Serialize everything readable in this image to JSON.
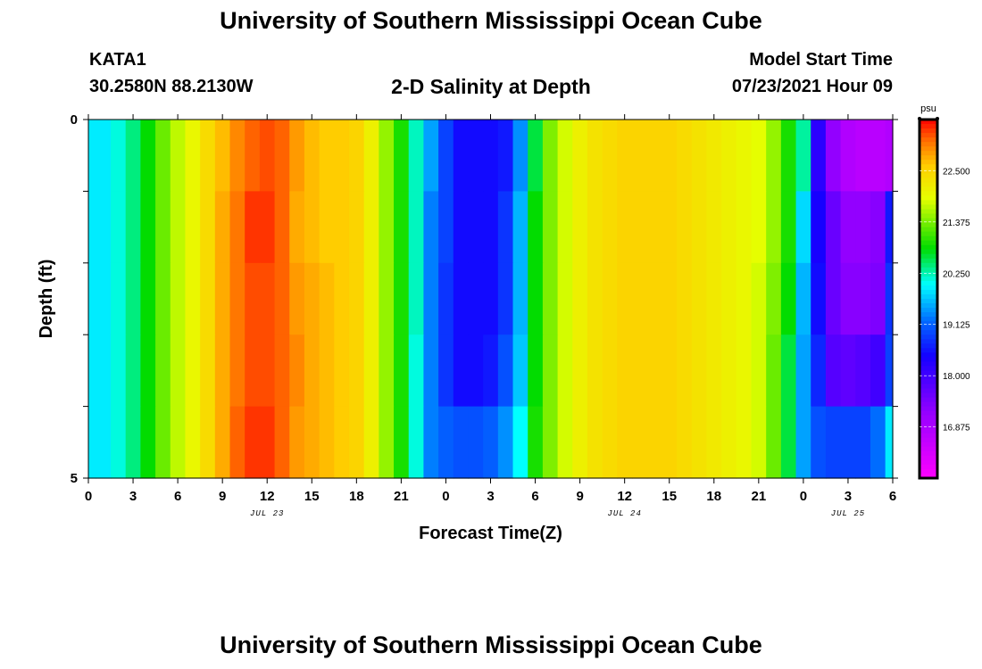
{
  "header": {
    "title": "University of Southern Mississippi Ocean Cube",
    "station": "KATA1",
    "coordinates": "30.2580N  88.2130W",
    "subtitle": "2-D Salinity at Depth",
    "model_start_label": "Model Start Time",
    "model_start_value": "07/23/2021 Hour 09"
  },
  "footer": {
    "title": "University of Southern Mississippi Ocean Cube"
  },
  "chart_data": {
    "type": "heatmap",
    "xlabel": "Forecast Time(Z)",
    "ylabel": "Depth (ft)",
    "x_tick_labels": [
      "0",
      "3",
      "6",
      "9",
      "12",
      "15",
      "18",
      "21",
      "0",
      "3",
      "6",
      "9",
      "12",
      "15",
      "18",
      "21",
      "0",
      "3",
      "6"
    ],
    "x_range_hours": [
      0,
      54
    ],
    "date_labels": [
      {
        "label": "JUL 23",
        "hour": 12
      },
      {
        "label": "JUL 24",
        "hour": 36
      },
      {
        "label": "JUL 25",
        "hour": 51
      }
    ],
    "y_tick_labels": [
      "0",
      "5"
    ],
    "ylim": [
      0,
      5
    ],
    "depth_levels_ft": [
      0.5,
      1.5,
      2.5,
      3.5,
      4.5
    ],
    "colorbar": {
      "unit": "psu",
      "tick_labels": [
        "22.500",
        "21.375",
        "20.250",
        "19.125",
        "18.000",
        "16.875"
      ],
      "vmin": 15.75,
      "vmax": 23.625
    },
    "hours": [
      0,
      1,
      2,
      3,
      4,
      5,
      6,
      7,
      8,
      9,
      10,
      11,
      12,
      13,
      14,
      15,
      16,
      17,
      18,
      19,
      20,
      21,
      22,
      23,
      24,
      25,
      26,
      27,
      28,
      29,
      30,
      31,
      32,
      33,
      34,
      35,
      36,
      37,
      38,
      39,
      40,
      41,
      42,
      43,
      44,
      45,
      46,
      47,
      48,
      49,
      50,
      51,
      52,
      53,
      54
    ],
    "salinity_psu": [
      [
        19.9,
        19.9,
        20.1,
        20.4,
        20.8,
        21.3,
        21.7,
        22.0,
        22.4,
        22.7,
        23.0,
        23.2,
        23.3,
        23.2,
        22.9,
        22.7,
        22.6,
        22.6,
        22.5,
        22.1,
        21.5,
        20.9,
        20.2,
        19.5,
        18.9,
        18.5,
        18.5,
        18.5,
        18.6,
        19.4,
        20.6,
        21.4,
        21.8,
        22.1,
        22.3,
        22.4,
        22.5,
        22.5,
        22.5,
        22.5,
        22.4,
        22.3,
        22.2,
        22.1,
        22.0,
        21.9,
        21.5,
        20.9,
        20.3,
        18.2,
        17.2,
        16.8,
        16.7,
        16.7,
        16.8
      ],
      [
        19.9,
        19.9,
        20.1,
        20.4,
        20.8,
        21.3,
        21.7,
        22.0,
        22.4,
        22.8,
        23.1,
        23.4,
        23.4,
        23.2,
        22.8,
        22.7,
        22.6,
        22.6,
        22.5,
        22.1,
        21.5,
        20.9,
        20.2,
        19.3,
        18.9,
        18.5,
        18.5,
        18.5,
        18.8,
        19.6,
        20.8,
        21.4,
        21.8,
        22.1,
        22.3,
        22.4,
        22.5,
        22.5,
        22.5,
        22.5,
        22.4,
        22.3,
        22.2,
        22.1,
        22.0,
        21.9,
        21.5,
        20.9,
        19.8,
        18.4,
        17.6,
        17.2,
        17.2,
        17.3,
        18.6
      ],
      [
        19.9,
        19.9,
        20.1,
        20.4,
        20.8,
        21.3,
        21.7,
        22.0,
        22.4,
        22.8,
        23.1,
        23.3,
        23.3,
        23.2,
        22.9,
        22.8,
        22.7,
        22.6,
        22.5,
        22.1,
        21.5,
        20.9,
        20.2,
        19.3,
        18.8,
        18.5,
        18.5,
        18.5,
        18.8,
        19.6,
        20.8,
        21.4,
        21.8,
        22.1,
        22.3,
        22.4,
        22.5,
        22.5,
        22.5,
        22.5,
        22.4,
        22.3,
        22.2,
        22.1,
        22.0,
        21.8,
        21.4,
        20.8,
        19.6,
        18.5,
        17.6,
        17.3,
        17.3,
        17.4,
        18.8
      ],
      [
        19.9,
        19.9,
        20.1,
        20.4,
        20.8,
        21.3,
        21.7,
        22.0,
        22.4,
        22.8,
        23.1,
        23.3,
        23.3,
        23.2,
        23.0,
        22.8,
        22.7,
        22.6,
        22.5,
        22.1,
        21.5,
        20.9,
        20.1,
        19.3,
        18.8,
        18.5,
        18.5,
        18.6,
        19.0,
        19.7,
        20.8,
        21.4,
        21.8,
        22.1,
        22.3,
        22.4,
        22.5,
        22.5,
        22.5,
        22.5,
        22.4,
        22.3,
        22.2,
        22.1,
        22.0,
        21.8,
        21.3,
        20.6,
        19.5,
        18.7,
        17.8,
        17.7,
        17.8,
        18.0,
        18.9
      ],
      [
        19.9,
        19.9,
        20.1,
        20.4,
        20.8,
        21.3,
        21.7,
        22.0,
        22.4,
        22.8,
        23.2,
        23.4,
        23.4,
        23.2,
        22.9,
        22.8,
        22.7,
        22.6,
        22.5,
        22.1,
        21.5,
        20.9,
        20.1,
        19.3,
        19.1,
        19.0,
        19.0,
        19.1,
        19.4,
        20.0,
        20.9,
        21.4,
        21.8,
        22.1,
        22.3,
        22.4,
        22.5,
        22.5,
        22.5,
        22.5,
        22.4,
        22.3,
        22.2,
        22.1,
        22.0,
        21.8,
        21.3,
        20.6,
        19.5,
        19.0,
        18.9,
        18.9,
        18.9,
        19.2,
        19.9
      ]
    ]
  }
}
